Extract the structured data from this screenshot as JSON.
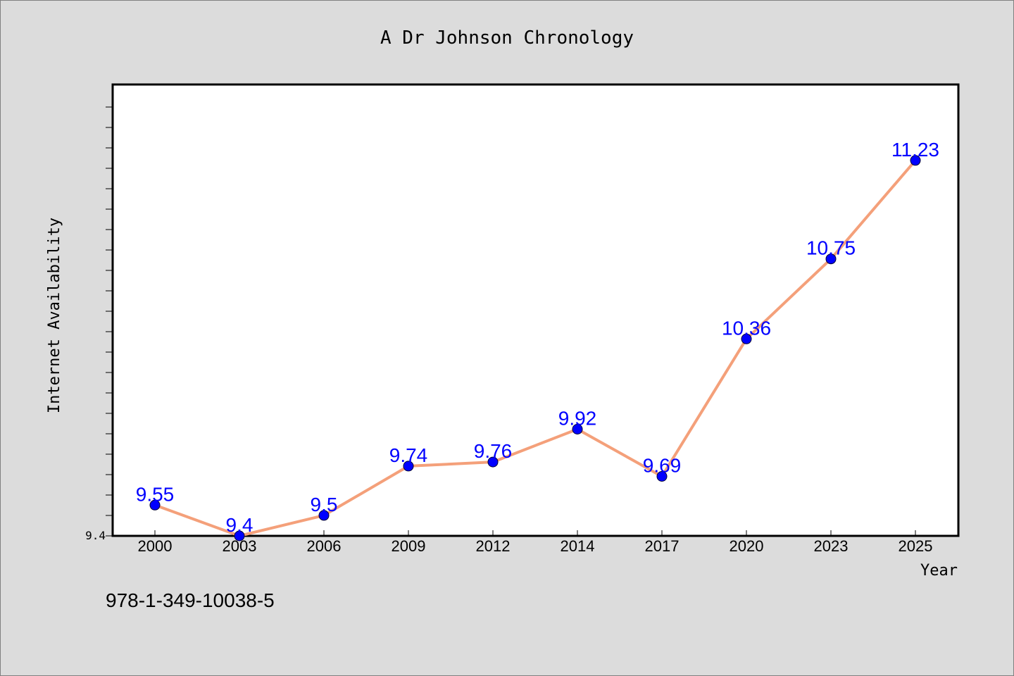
{
  "chart_data": {
    "type": "line",
    "title": "A Dr Johnson Chronology",
    "xlabel": "Year",
    "ylabel": "Internet Availability",
    "categories": [
      "2000",
      "2003",
      "2006",
      "2009",
      "2012",
      "2014",
      "2017",
      "2020",
      "2023",
      "2025"
    ],
    "series": [
      {
        "values": [
          9.55,
          9.4,
          9.5,
          9.74,
          9.76,
          9.92,
          9.69,
          10.36,
          10.75,
          11.23
        ]
      }
    ],
    "ytick_labels": [
      "9.4"
    ],
    "ylim": [
      9.4,
      11.6
    ],
    "grid": false,
    "legend": "none",
    "footnote": "978-1-349-10038-5",
    "colors": {
      "line": "#f4a07a",
      "marker": "#0000ff",
      "data_label": "#0000ff",
      "background": "#dcdcdc",
      "plot_background": "#ffffff"
    }
  }
}
